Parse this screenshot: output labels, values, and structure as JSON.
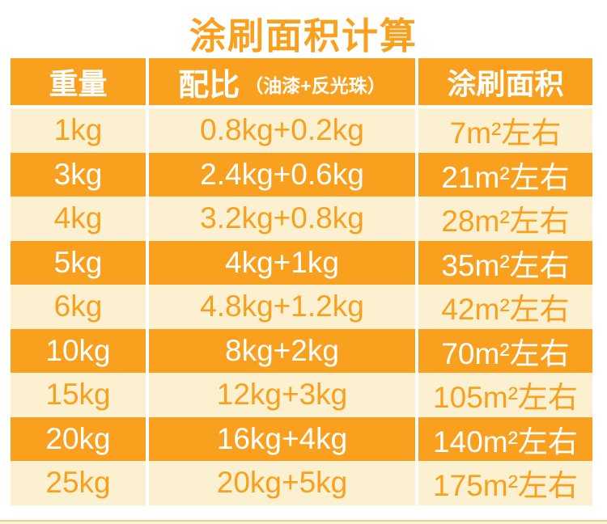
{
  "title": "涂刷面积计算",
  "colors": {
    "orange": "#F9A11E",
    "cream": "#FBF0D0",
    "white_text": "#FFFFFF",
    "page_bg": "#FFFFFF",
    "bottom_strip": "#F6C97C"
  },
  "table": {
    "headers": {
      "weight": "重量",
      "ratio": "配比",
      "ratio_sub": "（油漆+反光珠）",
      "area": "涂刷面积"
    },
    "rows": [
      {
        "weight": "1kg",
        "ratio": "0.8kg+0.2kg",
        "area": "7m²左右"
      },
      {
        "weight": "3kg",
        "ratio": "2.4kg+0.6kg",
        "area": "21m²左右"
      },
      {
        "weight": "4kg",
        "ratio": "3.2kg+0.8kg",
        "area": "28m²左右"
      },
      {
        "weight": "5kg",
        "ratio": "4kg+1kg",
        "area": "35m²左右"
      },
      {
        "weight": "6kg",
        "ratio": "4.8kg+1.2kg",
        "area": "42m²左右"
      },
      {
        "weight": "10kg",
        "ratio": "8kg+2kg",
        "area": "70m²左右"
      },
      {
        "weight": "15kg",
        "ratio": "12kg+3kg",
        "area": "105m²左右"
      },
      {
        "weight": "20kg",
        "ratio": "16kg+4kg",
        "area": "140m²左右"
      },
      {
        "weight": "25kg",
        "ratio": "20kg+5kg",
        "area": "175m²左右"
      }
    ]
  }
}
